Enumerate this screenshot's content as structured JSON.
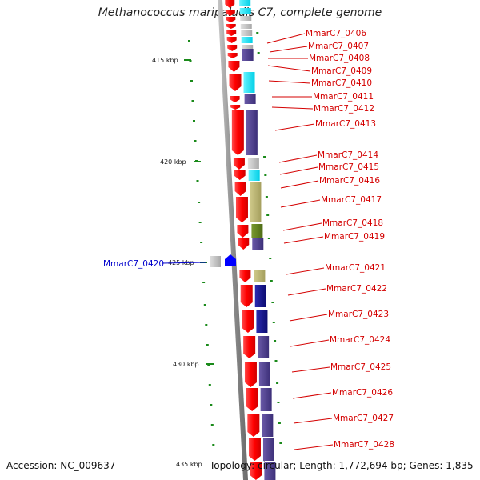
{
  "title": "Methanococcus maripaludis C7, complete genome",
  "footer": {
    "accession": "Accession: NC_009637",
    "kbp_label": "435 kbp",
    "topology": "Topology: circular; Length: 1,772,694 bp; Genes: 1,835"
  },
  "kbp_ticks": [
    {
      "label": "415 kbp"
    },
    {
      "label": "420 kbp"
    },
    {
      "label": "425 kbp"
    },
    {
      "label": "430 kbp"
    }
  ],
  "genes": [
    {
      "id": "MmarC7_0406",
      "color": "#d40000"
    },
    {
      "id": "MmarC7_0407",
      "color": "#d40000"
    },
    {
      "id": "MmarC7_0408",
      "color": "#d40000"
    },
    {
      "id": "MmarC7_0409",
      "color": "#d40000"
    },
    {
      "id": "MmarC7_0410",
      "color": "#d40000"
    },
    {
      "id": "MmarC7_0411",
      "color": "#d40000"
    },
    {
      "id": "MmarC7_0412",
      "color": "#d40000"
    },
    {
      "id": "MmarC7_0413",
      "color": "#d40000"
    },
    {
      "id": "MmarC7_0414",
      "color": "#d40000"
    },
    {
      "id": "MmarC7_0415",
      "color": "#d40000"
    },
    {
      "id": "MmarC7_0416",
      "color": "#d40000"
    },
    {
      "id": "MmarC7_0417",
      "color": "#d40000"
    },
    {
      "id": "MmarC7_0418",
      "color": "#d40000"
    },
    {
      "id": "MmarC7_0419",
      "color": "#d40000"
    },
    {
      "id": "MmarC7_0420",
      "color": "#0000cc"
    },
    {
      "id": "MmarC7_0421",
      "color": "#d40000"
    },
    {
      "id": "MmarC7_0422",
      "color": "#d40000"
    },
    {
      "id": "MmarC7_0423",
      "color": "#d40000"
    },
    {
      "id": "MmarC7_0424",
      "color": "#d40000"
    },
    {
      "id": "MmarC7_0425",
      "color": "#d40000"
    },
    {
      "id": "MmarC7_0426",
      "color": "#d40000"
    },
    {
      "id": "MmarC7_0427",
      "color": "#d40000"
    },
    {
      "id": "MmarC7_0428",
      "color": "#d40000"
    }
  ],
  "colors": {
    "gene_red": "#ff0000",
    "gene_blue": "#0000ff",
    "backbone": "#8c8c8c",
    "tick_green": "#1a8a1a",
    "cog_cyan": "#00e5ff",
    "cog_purple": "#4b3c8c",
    "cog_olive": "#b7b06e",
    "cog_green": "#5f7f1f",
    "cog_gray": "#c0c0c0",
    "cog_navy": "#14148c"
  }
}
